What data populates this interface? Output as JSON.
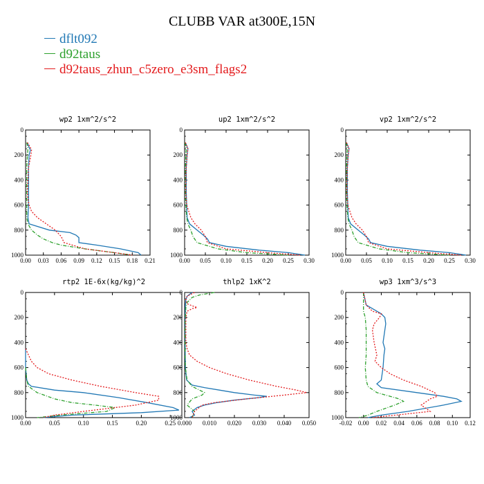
{
  "title": "CLUBB VAR at300E,15N",
  "legend": [
    {
      "label": "dflt092",
      "color": "#1f77b4",
      "style": "solid"
    },
    {
      "label": "d92taus",
      "color": "#2ca02c",
      "style": "dashdot"
    },
    {
      "label": "d92taus_zhun_c5zero_e3sm_flags2",
      "color": "#e31a1c",
      "style": "dotted"
    }
  ],
  "chart_data": [
    {
      "type": "line",
      "title": "wp2  1xm^2/s^2",
      "xlim": [
        0,
        0.21
      ],
      "ylim": [
        1000,
        0
      ],
      "xticks": [
        0.0,
        0.03,
        0.06,
        0.09,
        0.12,
        0.15,
        0.18,
        0.21
      ],
      "xtick_labels": [
        "0.00",
        "0.03",
        "0.06",
        "0.09",
        "0.12",
        "0.15",
        "0.18",
        "0.21"
      ],
      "yticks": [
        0,
        200,
        400,
        600,
        800,
        1000
      ],
      "ytick_labels": [
        "0",
        "200",
        "400",
        "600",
        "800",
        "1000"
      ],
      "series": [
        {
          "name": "dflt092",
          "y": [
            100,
            140,
            160,
            200,
            300,
            400,
            500,
            600,
            700,
            750,
            800,
            820,
            840,
            860,
            880,
            900,
            920,
            950,
            980,
            1000
          ],
          "x": [
            0.003,
            0.006,
            0.008,
            0.006,
            0.005,
            0.005,
            0.005,
            0.005,
            0.004,
            0.006,
            0.04,
            0.075,
            0.085,
            0.09,
            0.09,
            0.09,
            0.12,
            0.16,
            0.19,
            0.195
          ]
        },
        {
          "name": "d92taus",
          "y": [
            100,
            150,
            200,
            300,
            400,
            500,
            600,
            700,
            750,
            800,
            840,
            870,
            900,
            920,
            950,
            980,
            1000
          ],
          "x": [
            0.002,
            0.004,
            0.003,
            0.002,
            0.002,
            0.002,
            0.002,
            0.002,
            0.004,
            0.01,
            0.02,
            0.03,
            0.045,
            0.06,
            0.1,
            0.15,
            0.18
          ]
        },
        {
          "name": "d92taus_zhun_c5zero_e3sm_flags2",
          "y": [
            100,
            140,
            160,
            200,
            300,
            400,
            500,
            550,
            600,
            650,
            700,
            750,
            800,
            850,
            900,
            950,
            980,
            1000
          ],
          "x": [
            0.003,
            0.008,
            0.01,
            0.009,
            0.005,
            0.004,
            0.003,
            0.004,
            0.006,
            0.01,
            0.02,
            0.035,
            0.05,
            0.06,
            0.065,
            0.1,
            0.15,
            0.18
          ]
        }
      ]
    },
    {
      "type": "line",
      "title": "up2  1xm^2/s^2",
      "xlim": [
        0,
        0.3
      ],
      "ylim": [
        1000,
        0
      ],
      "xticks": [
        0.0,
        0.05,
        0.1,
        0.15,
        0.2,
        0.25,
        0.3
      ],
      "xtick_labels": [
        "0.00",
        "0.05",
        "0.10",
        "0.15",
        "0.20",
        "0.25",
        "0.30"
      ],
      "yticks": [
        0,
        200,
        400,
        600,
        800,
        1000
      ],
      "ytick_labels": [
        "0",
        "200",
        "400",
        "600",
        "800",
        "1000"
      ],
      "series": [
        {
          "name": "dflt092",
          "y": [
            100,
            150,
            200,
            300,
            400,
            500,
            600,
            700,
            750,
            800,
            840,
            870,
            900,
            930,
            960,
            980,
            1000
          ],
          "x": [
            0.002,
            0.008,
            0.006,
            0.004,
            0.004,
            0.004,
            0.005,
            0.006,
            0.012,
            0.03,
            0.045,
            0.055,
            0.06,
            0.1,
            0.18,
            0.25,
            0.29
          ]
        },
        {
          "name": "d92taus",
          "y": [
            100,
            150,
            200,
            300,
            400,
            500,
            600,
            700,
            750,
            800,
            850,
            900,
            950,
            980,
            1000
          ],
          "x": [
            0.001,
            0.004,
            0.003,
            0.002,
            0.002,
            0.002,
            0.003,
            0.005,
            0.008,
            0.015,
            0.02,
            0.03,
            0.08,
            0.15,
            0.25
          ]
        },
        {
          "name": "d92taus_zhun_c5zero_e3sm_flags2",
          "y": [
            100,
            150,
            200,
            300,
            400,
            500,
            600,
            650,
            700,
            750,
            800,
            850,
            900,
            950,
            980,
            1000
          ],
          "x": [
            0.002,
            0.008,
            0.006,
            0.004,
            0.003,
            0.003,
            0.005,
            0.01,
            0.015,
            0.025,
            0.04,
            0.05,
            0.055,
            0.1,
            0.2,
            0.28
          ]
        }
      ]
    },
    {
      "type": "line",
      "title": "vp2  1xm^2/s^2",
      "xlim": [
        0,
        0.3
      ],
      "ylim": [
        1000,
        0
      ],
      "xticks": [
        0.0,
        0.05,
        0.1,
        0.15,
        0.2,
        0.25,
        0.3
      ],
      "xtick_labels": [
        "0.00",
        "0.05",
        "0.10",
        "0.15",
        "0.20",
        "0.25",
        "0.30"
      ],
      "yticks": [
        0,
        200,
        400,
        600,
        800,
        1000
      ],
      "ytick_labels": [
        "0",
        "200",
        "400",
        "600",
        "800",
        "1000"
      ],
      "series": [
        {
          "name": "dflt092",
          "y": [
            100,
            150,
            200,
            300,
            400,
            500,
            600,
            700,
            750,
            800,
            840,
            870,
            900,
            930,
            960,
            980,
            1000
          ],
          "x": [
            0.002,
            0.008,
            0.006,
            0.004,
            0.004,
            0.004,
            0.005,
            0.006,
            0.012,
            0.03,
            0.045,
            0.055,
            0.06,
            0.1,
            0.18,
            0.25,
            0.29
          ]
        },
        {
          "name": "d92taus",
          "y": [
            100,
            150,
            200,
            300,
            400,
            500,
            600,
            700,
            750,
            800,
            850,
            900,
            950,
            980,
            1000
          ],
          "x": [
            0.001,
            0.004,
            0.003,
            0.002,
            0.002,
            0.002,
            0.003,
            0.005,
            0.008,
            0.015,
            0.02,
            0.03,
            0.08,
            0.15,
            0.25
          ]
        },
        {
          "name": "d92taus_zhun_c5zero_e3sm_flags2",
          "y": [
            100,
            150,
            200,
            300,
            400,
            500,
            600,
            650,
            700,
            750,
            800,
            850,
            900,
            950,
            980,
            1000
          ],
          "x": [
            0.002,
            0.008,
            0.006,
            0.004,
            0.003,
            0.003,
            0.005,
            0.01,
            0.015,
            0.025,
            0.04,
            0.05,
            0.055,
            0.1,
            0.2,
            0.28
          ]
        }
      ]
    },
    {
      "type": "line",
      "title": "rtp2  1E-6x(kg/kg)^2",
      "xlim": [
        0,
        0.27
      ],
      "ylim": [
        1000,
        0
      ],
      "xticks": [
        0.0,
        0.05,
        0.1,
        0.15,
        0.2,
        0.25
      ],
      "xtick_labels": [
        "0.00",
        "0.05",
        "0.10",
        "0.15",
        "0.20",
        "0.25"
      ],
      "yticks": [
        0,
        200,
        400,
        600,
        800,
        1000
      ],
      "ytick_labels": [
        "0",
        "200",
        "400",
        "600",
        "800",
        "1000"
      ],
      "series": [
        {
          "name": "dflt092",
          "y": [
            450,
            600,
            700,
            730,
            750,
            780,
            800,
            840,
            880,
            920,
            940,
            960,
            980,
            1000
          ],
          "x": [
            0.0,
            0.0,
            0.002,
            0.005,
            0.01,
            0.05,
            0.1,
            0.16,
            0.21,
            0.255,
            0.265,
            0.2,
            0.08,
            0.03
          ]
        },
        {
          "name": "d92taus",
          "y": [
            600,
            700,
            750,
            800,
            850,
            880,
            900,
            920,
            950,
            980,
            1000
          ],
          "x": [
            0.0,
            0.002,
            0.005,
            0.02,
            0.05,
            0.08,
            0.12,
            0.155,
            0.14,
            0.06,
            0.02
          ]
        },
        {
          "name": "d92taus_zhun_c5zero_e3sm_flags2",
          "y": [
            450,
            500,
            550,
            600,
            650,
            700,
            750,
            800,
            830,
            860,
            900,
            950,
            980,
            1000
          ],
          "x": [
            0.0,
            0.005,
            0.01,
            0.02,
            0.04,
            0.08,
            0.13,
            0.19,
            0.23,
            0.23,
            0.19,
            0.1,
            0.05,
            0.03
          ]
        }
      ]
    },
    {
      "type": "line",
      "title": "thlp2  1xK^2",
      "xlim": [
        0,
        0.05
      ],
      "ylim": [
        1000,
        0
      ],
      "xticks": [
        0.0,
        0.01,
        0.02,
        0.03,
        0.04,
        0.05
      ],
      "xtick_labels": [
        "0.000",
        "0.010",
        "0.020",
        "0.030",
        "0.040",
        "0.050"
      ],
      "yticks": [
        0,
        200,
        400,
        600,
        800,
        1000
      ],
      "ytick_labels": [
        "0",
        "200",
        "400",
        "600",
        "800",
        "1000"
      ],
      "series": [
        {
          "name": "dflt092",
          "y": [
            0,
            30,
            60,
            100,
            200,
            400,
            600,
            700,
            740,
            760,
            780,
            800,
            820,
            830,
            840,
            860,
            880,
            900,
            920,
            950,
            980,
            1000
          ],
          "x": [
            0.003,
            0.001,
            0.0005,
            0.0003,
            0.0002,
            0.0002,
            0.0003,
            0.0008,
            0.003,
            0.008,
            0.014,
            0.02,
            0.028,
            0.033,
            0.03,
            0.02,
            0.013,
            0.008,
            0.005,
            0.003,
            0.004,
            0.002
          ]
        },
        {
          "name": "d92taus",
          "y": [
            0,
            20,
            40,
            80,
            120,
            200,
            300,
            400,
            500,
            600,
            700,
            750,
            780,
            800,
            820,
            850,
            900,
            950,
            1000
          ],
          "x": [
            0.012,
            0.006,
            0.003,
            0.001,
            0.0005,
            0.0003,
            0.0002,
            0.0002,
            0.0002,
            0.0003,
            0.001,
            0.003,
            0.006,
            0.008,
            0.007,
            0.003,
            0.001,
            0.004,
            0.003
          ]
        },
        {
          "name": "d92taus_zhun_c5zero_e3sm_flags2",
          "y": [
            0,
            30,
            60,
            90,
            110,
            120,
            130,
            150,
            200,
            300,
            400,
            450,
            500,
            550,
            600,
            650,
            700,
            750,
            780,
            800,
            820,
            850,
            880,
            900,
            950,
            1000
          ],
          "x": [
            0.004,
            0.001,
            0.0005,
            0.001,
            0.0035,
            0.005,
            0.003,
            0.001,
            0.0005,
            0.0005,
            0.0005,
            0.001,
            0.002,
            0.005,
            0.01,
            0.017,
            0.026,
            0.037,
            0.045,
            0.049,
            0.04,
            0.025,
            0.012,
            0.007,
            0.004,
            0.003
          ]
        }
      ]
    },
    {
      "type": "line",
      "title": "wp3  1xm^3/s^3",
      "xlim": [
        -0.02,
        0.12
      ],
      "ylim": [
        1000,
        0
      ],
      "xticks": [
        -0.02,
        0.0,
        0.02,
        0.04,
        0.06,
        0.08,
        0.1,
        0.12
      ],
      "xtick_labels": [
        "-0.02",
        "0.00",
        "0.02",
        "0.04",
        "0.06",
        "0.08",
        "0.10",
        "0.12"
      ],
      "yticks": [
        0,
        200,
        400,
        600,
        800,
        1000
      ],
      "ytick_labels": [
        "0",
        "200",
        "400",
        "600",
        "800",
        "1000"
      ],
      "series": [
        {
          "name": "dflt092",
          "y": [
            0,
            100,
            150,
            170,
            200,
            250,
            300,
            400,
            450,
            500,
            600,
            700,
            730,
            760,
            800,
            830,
            850,
            870,
            900,
            950,
            980,
            1000
          ],
          "x": [
            0.0,
            0.003,
            0.015,
            0.02,
            0.024,
            0.025,
            0.024,
            0.022,
            0.024,
            0.023,
            0.022,
            0.02,
            0.015,
            0.02,
            0.06,
            0.09,
            0.105,
            0.11,
            0.09,
            0.05,
            0.02,
            0.005
          ]
        },
        {
          "name": "d92taus",
          "y": [
            0,
            150,
            200,
            300,
            400,
            500,
            600,
            700,
            750,
            800,
            830,
            850,
            870,
            900,
            950,
            980,
            1000
          ],
          "x": [
            0.0,
            0.0,
            0.002,
            0.003,
            0.003,
            0.003,
            0.002,
            0.003,
            0.005,
            0.015,
            0.03,
            0.04,
            0.045,
            0.035,
            0.015,
            0.005,
            -0.005
          ]
        },
        {
          "name": "d92taus_zhun_c5zero_e3sm_flags2",
          "y": [
            0,
            100,
            150,
            170,
            200,
            250,
            300,
            400,
            500,
            550,
            600,
            650,
            700,
            750,
            800,
            830,
            850,
            900,
            950,
            1000
          ],
          "x": [
            0.0,
            0.003,
            0.01,
            0.02,
            0.018,
            0.012,
            0.01,
            0.012,
            0.015,
            0.013,
            0.02,
            0.03,
            0.045,
            0.065,
            0.08,
            0.083,
            0.075,
            0.065,
            0.075,
            0.01
          ]
        }
      ]
    }
  ]
}
